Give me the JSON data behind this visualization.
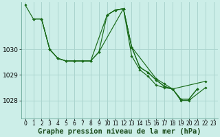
{
  "background_color": "#cceee8",
  "grid_color": "#aad4ce",
  "line_color": "#1a6b1a",
  "xlabel": "Graphe pression niveau de la mer (hPa)",
  "xlabel_fontsize": 7.5,
  "xtick_fontsize": 5.5,
  "ytick_fontsize": 6.5,
  "xlim": [
    -0.5,
    23.5
  ],
  "ylim": [
    1027.3,
    1031.85
  ],
  "yticks": [
    1028,
    1029,
    1030
  ],
  "xticks": [
    0,
    1,
    2,
    3,
    4,
    5,
    6,
    7,
    8,
    9,
    10,
    11,
    12,
    13,
    14,
    15,
    16,
    17,
    18,
    19,
    20,
    21,
    22,
    23
  ],
  "series": [
    {
      "points": [
        [
          0,
          1031.75
        ],
        [
          1,
          1031.2
        ],
        [
          2,
          1031.2
        ],
        [
          3,
          1030.0
        ],
        [
          4,
          1029.65
        ],
        [
          5,
          1029.55
        ],
        [
          6,
          1029.55
        ],
        [
          7,
          1029.55
        ],
        [
          8,
          1029.55
        ],
        [
          9,
          1029.9
        ],
        [
          10,
          1031.35
        ],
        [
          11,
          1031.55
        ],
        [
          12,
          1031.6
        ],
        [
          13,
          1030.1
        ],
        [
          14,
          1029.3
        ],
        [
          15,
          1029.1
        ],
        [
          16,
          1028.8
        ],
        [
          17,
          1028.55
        ],
        [
          18,
          1028.45
        ],
        [
          19,
          1028.05
        ],
        [
          20,
          1028.05
        ],
        [
          21,
          1028.45
        ]
      ]
    },
    {
      "points": [
        [
          1,
          1031.2
        ],
        [
          2,
          1031.2
        ],
        [
          3,
          1030.0
        ],
        [
          4,
          1029.65
        ],
        [
          5,
          1029.55
        ],
        [
          6,
          1029.55
        ],
        [
          7,
          1029.55
        ],
        [
          8,
          1029.55
        ],
        [
          10,
          1031.35
        ],
        [
          11,
          1031.55
        ],
        [
          12,
          1031.6
        ],
        [
          13,
          1030.1
        ],
        [
          14,
          1029.3
        ],
        [
          15,
          1029.1
        ],
        [
          16,
          1028.8
        ],
        [
          17,
          1028.55
        ],
        [
          18,
          1028.45
        ],
        [
          19,
          1028.05
        ],
        [
          20,
          1028.05
        ],
        [
          21,
          1028.45
        ]
      ]
    },
    {
      "points": [
        [
          1,
          1031.2
        ],
        [
          2,
          1031.2
        ],
        [
          3,
          1030.0
        ],
        [
          4,
          1029.65
        ],
        [
          5,
          1029.55
        ],
        [
          6,
          1029.55
        ],
        [
          7,
          1029.55
        ],
        [
          8,
          1029.55
        ],
        [
          9,
          1029.9
        ],
        [
          12,
          1031.6
        ],
        [
          13,
          1029.75
        ],
        [
          14,
          1029.2
        ],
        [
          15,
          1028.95
        ],
        [
          16,
          1028.6
        ],
        [
          17,
          1028.5
        ],
        [
          18,
          1028.45
        ],
        [
          22,
          1028.75
        ]
      ]
    },
    {
      "points": [
        [
          10,
          1031.35
        ],
        [
          11,
          1031.55
        ],
        [
          12,
          1031.6
        ],
        [
          13,
          1030.1
        ],
        [
          16,
          1028.85
        ],
        [
          17,
          1028.65
        ],
        [
          18,
          1028.45
        ],
        [
          19,
          1028.0
        ],
        [
          20,
          1028.0
        ],
        [
          22,
          1028.5
        ]
      ]
    }
  ]
}
